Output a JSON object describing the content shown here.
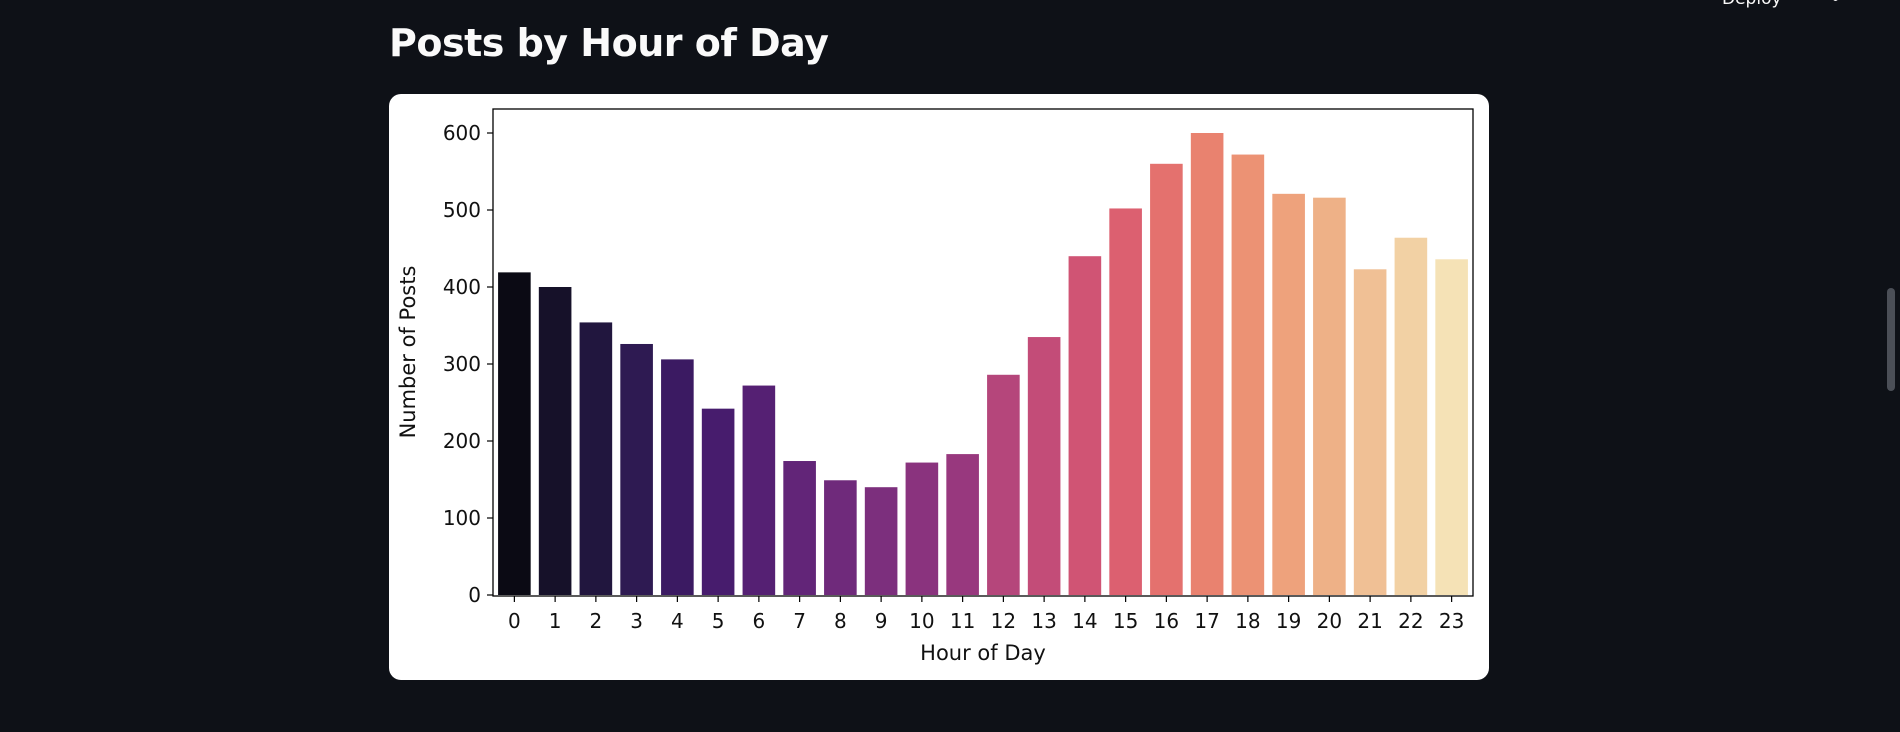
{
  "page": {
    "title": "Posts by Hour of Day"
  },
  "header": {
    "deploy_label": "Deploy",
    "menu_icon": "vertical-dots-icon"
  },
  "chart_data": {
    "type": "bar",
    "title": "",
    "xlabel": "Hour of Day",
    "ylabel": "Number of Posts",
    "categories": [
      "0",
      "1",
      "2",
      "3",
      "4",
      "5",
      "6",
      "7",
      "8",
      "9",
      "10",
      "11",
      "12",
      "13",
      "14",
      "15",
      "16",
      "17",
      "18",
      "19",
      "20",
      "21",
      "22",
      "23"
    ],
    "values": [
      419,
      400,
      354,
      326,
      306,
      242,
      272,
      174,
      149,
      140,
      172,
      183,
      286,
      335,
      440,
      502,
      560,
      600,
      572,
      521,
      516,
      423,
      464,
      436
    ],
    "ylim": [
      0,
      630
    ],
    "yticks": [
      0,
      100,
      200,
      300,
      400,
      500,
      600
    ],
    "grid": false,
    "legend": "none",
    "palette": "magma",
    "colors": [
      "#0b0a14",
      "#161129",
      "#21163e",
      "#2e1a52",
      "#3b1a62",
      "#471c6d",
      "#552073",
      "#622578",
      "#6f2a7b",
      "#7c2f7d",
      "#8a337e",
      "#98387e",
      "#b5467b",
      "#c34c78",
      "#d05474",
      "#dc6070",
      "#e4716e",
      "#e9826f",
      "#ec9274",
      "#eea27c",
      "#eeb187",
      "#f0c095",
      "#f2d1a4",
      "#f5e2b6"
    ]
  }
}
